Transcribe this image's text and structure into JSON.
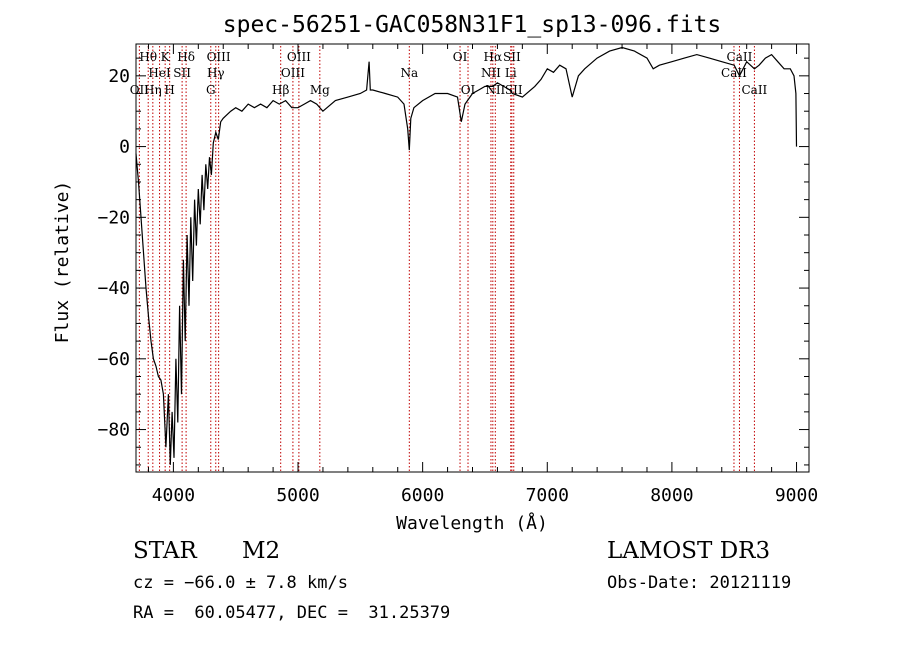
{
  "chart_data": {
    "type": "line",
    "title": "spec-56251-GAC058N31F1_sp13-096.fits",
    "xlabel": "Wavelength (Å)",
    "ylabel": "Flux (relative)",
    "xlim": [
      3700,
      9100
    ],
    "ylim": [
      -92,
      29
    ],
    "x_ticks": [
      4000,
      5000,
      6000,
      7000,
      8000,
      9000
    ],
    "x_tick_labels": [
      "4000",
      "5000",
      "6000",
      "7000",
      "8000",
      "9000"
    ],
    "y_ticks": [
      -80,
      -60,
      -40,
      -20,
      0,
      20
    ],
    "y_tick_labels": [
      "−80",
      "−60",
      "−40",
      "−20",
      "0",
      "20"
    ],
    "series": [
      {
        "name": "spectrum",
        "x": [
          3700,
          3720,
          3740,
          3760,
          3780,
          3800,
          3820,
          3840,
          3860,
          3880,
          3900,
          3920,
          3940,
          3960,
          3975,
          3990,
          4005,
          4020,
          4035,
          4050,
          4065,
          4080,
          4095,
          4110,
          4125,
          4140,
          4155,
          4170,
          4185,
          4200,
          4215,
          4230,
          4245,
          4260,
          4275,
          4290,
          4305,
          4320,
          4340,
          4360,
          4380,
          4400,
          4430,
          4460,
          4500,
          4550,
          4600,
          4650,
          4700,
          4750,
          4800,
          4850,
          4900,
          4950,
          5000,
          5050,
          5100,
          5150,
          5200,
          5300,
          5400,
          5500,
          5550,
          5570,
          5580,
          5600,
          5700,
          5800,
          5850,
          5880,
          5893,
          5905,
          5930,
          6000,
          6100,
          6200,
          6280,
          6310,
          6340,
          6400,
          6450,
          6500,
          6563,
          6600,
          6650,
          6700,
          6720,
          6800,
          6900,
          6950,
          7000,
          7050,
          7100,
          7150,
          7200,
          7250,
          7300,
          7400,
          7500,
          7600,
          7700,
          7800,
          7850,
          7900,
          8000,
          8100,
          8200,
          8300,
          8400,
          8500,
          8542,
          8600,
          8662,
          8700,
          8750,
          8800,
          8850,
          8900,
          8950,
          8980,
          8995,
          9000
        ],
        "values": [
          -2,
          -10,
          -20,
          -30,
          -40,
          -48,
          -55,
          -60,
          -62,
          -65,
          -66,
          -70,
          -85,
          -70,
          -90,
          -75,
          -88,
          -60,
          -78,
          -45,
          -70,
          -32,
          -55,
          -25,
          -45,
          -20,
          -38,
          -15,
          -28,
          -12,
          -22,
          -8,
          -18,
          -5,
          -12,
          -3,
          -8,
          1,
          4,
          2,
          7,
          8,
          9,
          10,
          11,
          10,
          12,
          11,
          12,
          11,
          13,
          12,
          13,
          11,
          11,
          12,
          13,
          12,
          10,
          13,
          14,
          15,
          16,
          24,
          16,
          16,
          15,
          14,
          12,
          5,
          -1,
          8,
          11,
          13,
          15,
          15,
          14,
          7,
          12,
          15,
          16,
          17,
          17,
          18,
          17,
          16,
          15,
          14,
          17,
          19,
          22,
          21,
          23,
          22,
          14,
          20,
          22,
          25,
          27,
          28,
          27,
          25,
          22,
          23,
          24,
          25,
          26,
          25,
          24,
          23,
          20,
          24,
          22,
          23,
          25,
          26,
          24,
          22,
          22,
          20,
          15,
          0
        ]
      }
    ],
    "line_markers": [
      {
        "w": 3727,
        "label": "OII",
        "row": 3
      },
      {
        "w": 3798,
        "label": "Hθ",
        "row": 1
      },
      {
        "w": 3835,
        "label": "Hη",
        "row": 3
      },
      {
        "w": 3889,
        "label": "HeI",
        "row": 2
      },
      {
        "w": 3934,
        "label": "K",
        "row": 1
      },
      {
        "w": 3970,
        "label": "H",
        "row": 3
      },
      {
        "w": 4070,
        "label": "SII",
        "row": 2
      },
      {
        "w": 4102,
        "label": "Hδ",
        "row": 1
      },
      {
        "w": 4300,
        "label": "G",
        "row": 3
      },
      {
        "w": 4340,
        "label": "Hγ",
        "row": 2
      },
      {
        "w": 4363,
        "label": "OIII",
        "row": 1
      },
      {
        "w": 4861,
        "label": "Hβ",
        "row": 3
      },
      {
        "w": 4959,
        "label": "OIII",
        "row": 2
      },
      {
        "w": 5007,
        "label": "OIII",
        "row": 1
      },
      {
        "w": 5175,
        "label": "Mg",
        "row": 3
      },
      {
        "w": 5893,
        "label": "Na",
        "row": 2
      },
      {
        "w": 6300,
        "label": "OI",
        "row": 1
      },
      {
        "w": 6364,
        "label": "OI",
        "row": 3
      },
      {
        "w": 6548,
        "label": "NII",
        "row": 2
      },
      {
        "w": 6563,
        "label": "Hα",
        "row": 1
      },
      {
        "w": 6583,
        "label": "NII",
        "row": 3
      },
      {
        "w": 6707,
        "label": "Li",
        "row": 2
      },
      {
        "w": 6716,
        "label": "SII",
        "row": 1
      },
      {
        "w": 6731,
        "label": "SII",
        "row": 3
      },
      {
        "w": 8498,
        "label": "CaII",
        "row": 2
      },
      {
        "w": 8542,
        "label": "CaII",
        "row": 1
      },
      {
        "w": 8662,
        "label": "CaII",
        "row": 3
      }
    ]
  },
  "info": {
    "object_class": "STAR",
    "subclass": "M2",
    "survey": "LAMOST DR3",
    "velocity": "cz = −66.0 ± 7.8 km/s",
    "obs_date": "Obs-Date: 20121119",
    "coords": "RA =  60.05477, DEC =  31.25379"
  },
  "colors": {
    "line": "#000000",
    "marker": "#c00000"
  }
}
